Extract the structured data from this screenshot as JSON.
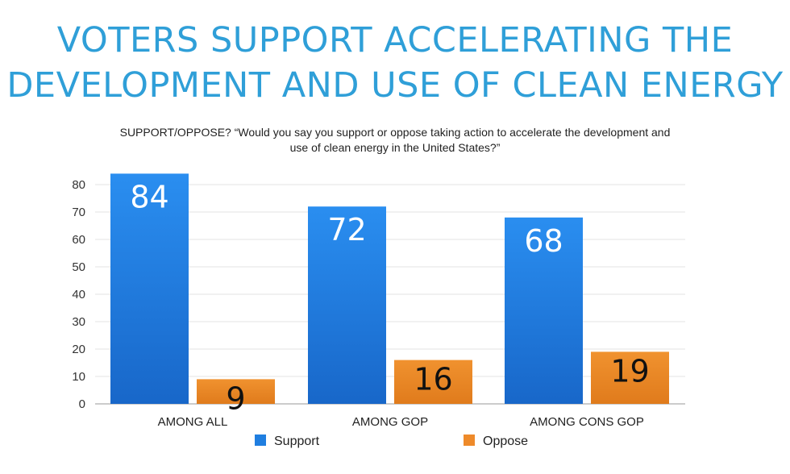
{
  "chart_data": {
    "type": "bar",
    "title": "VOTERS SUPPORT ACCELERATING THE DEVELOPMENT AND USE OF CLEAN ENERGY",
    "subtitle_line1": "SUPPORT/OPPOSE? “Would you say you support or oppose taking action to accelerate the development and",
    "subtitle_line2": "use of clean energy in the United States?”",
    "categories": [
      "AMONG ALL",
      "AMONG GOP",
      "AMONG CONS GOP"
    ],
    "series": [
      {
        "name": "Support",
        "values": [
          84,
          72,
          68
        ],
        "color": "#1f7ee0"
      },
      {
        "name": "Oppose",
        "values": [
          9,
          16,
          19
        ],
        "color": "#ee8a2a"
      }
    ],
    "ylim": [
      0,
      80
    ],
    "yticks": [
      0,
      10,
      20,
      30,
      40,
      50,
      60,
      70,
      80
    ],
    "grid": true,
    "legend_position": "bottom"
  }
}
